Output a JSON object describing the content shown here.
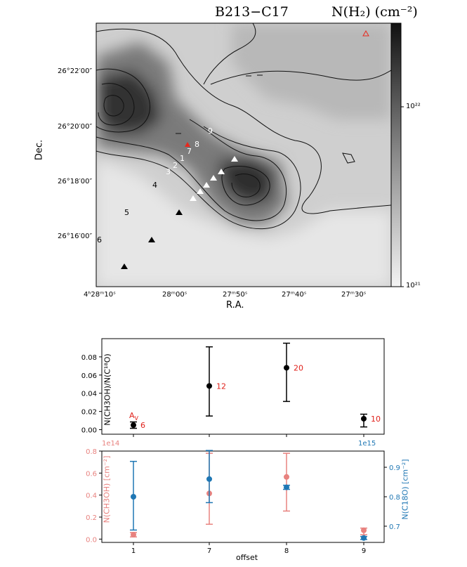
{
  "map": {
    "title": "B213−C17",
    "colorbar_label": "N(H₂) (cm⁻²)",
    "xlabel": "R.A.",
    "ylabel": "Dec.",
    "xticks": [
      "4ʰ28ᵐ10ˢ",
      "28ᵐ00ˢ",
      "27ᵐ50ˢ",
      "27ᵐ40ˢ",
      "27ᵐ30ˢ"
    ],
    "yticks": [
      "26°22′00″",
      "26°20′00″",
      "26°18′00″",
      "26°16′00″"
    ],
    "colorbar_ticks": [
      "10²²",
      "10²¹"
    ],
    "offset_labels_white": [
      "1",
      "2",
      "3",
      "7",
      "8",
      "9"
    ],
    "offset_labels_black": [
      "4",
      "5",
      "6"
    ],
    "colors": {
      "white_marker": "#ffffff",
      "black_marker": "#000000",
      "red_marker": "#e8281e"
    }
  },
  "chart_data": [
    {
      "type": "scatter",
      "ylabel": "N(CH3OH)/N(C¹⁸O)",
      "ylim": [
        -0.005,
        0.1
      ],
      "yticks": [
        "0.00",
        "0.02",
        "0.04",
        "0.06",
        "0.08"
      ],
      "x": [
        "1",
        "7",
        "8",
        "9"
      ],
      "values": [
        0.005,
        0.048,
        0.068,
        0.012
      ],
      "err_low": [
        0.0035,
        0.033,
        0.037,
        0.009
      ],
      "err_high": [
        0.0035,
        0.043,
        0.027,
        0.005
      ],
      "av_title": "A",
      "av_sub": "V",
      "av_labels": [
        "6",
        "12",
        "20",
        "10"
      ],
      "color": "#000000",
      "label_color": "#e0201a"
    },
    {
      "type": "scatter",
      "xlabel": "offset",
      "categories": [
        "1",
        "7",
        "8",
        "9"
      ],
      "left": {
        "ylabel": "N(CH3OH) [cm⁻²]",
        "exponent": "1e14",
        "ylim": [
          -0.03,
          0.8
        ],
        "yticks": [
          "0.0",
          "0.2",
          "0.4",
          "0.6",
          "0.8"
        ],
        "values": [
          0.04,
          0.415,
          0.565,
          0.08
        ],
        "err_low": [
          0.02,
          0.28,
          0.31,
          0.04
        ],
        "err_high": [
          0.02,
          0.365,
          0.215,
          0.02
        ],
        "color": "#e8827f"
      },
      "right": {
        "ylabel": "N(C18O) [cm⁻²]",
        "exponent": "1e15",
        "ylim": [
          0.645,
          0.955
        ],
        "yticks": [
          "0.7",
          "0.8",
          "0.9"
        ],
        "values": [
          0.8,
          0.86,
          0.832,
          0.66
        ],
        "err_low": [
          0.113,
          0.08,
          0.007,
          0.005
        ],
        "err_high": [
          0.12,
          0.097,
          0.007,
          0.005
        ],
        "color": "#1f77b4"
      }
    }
  ]
}
